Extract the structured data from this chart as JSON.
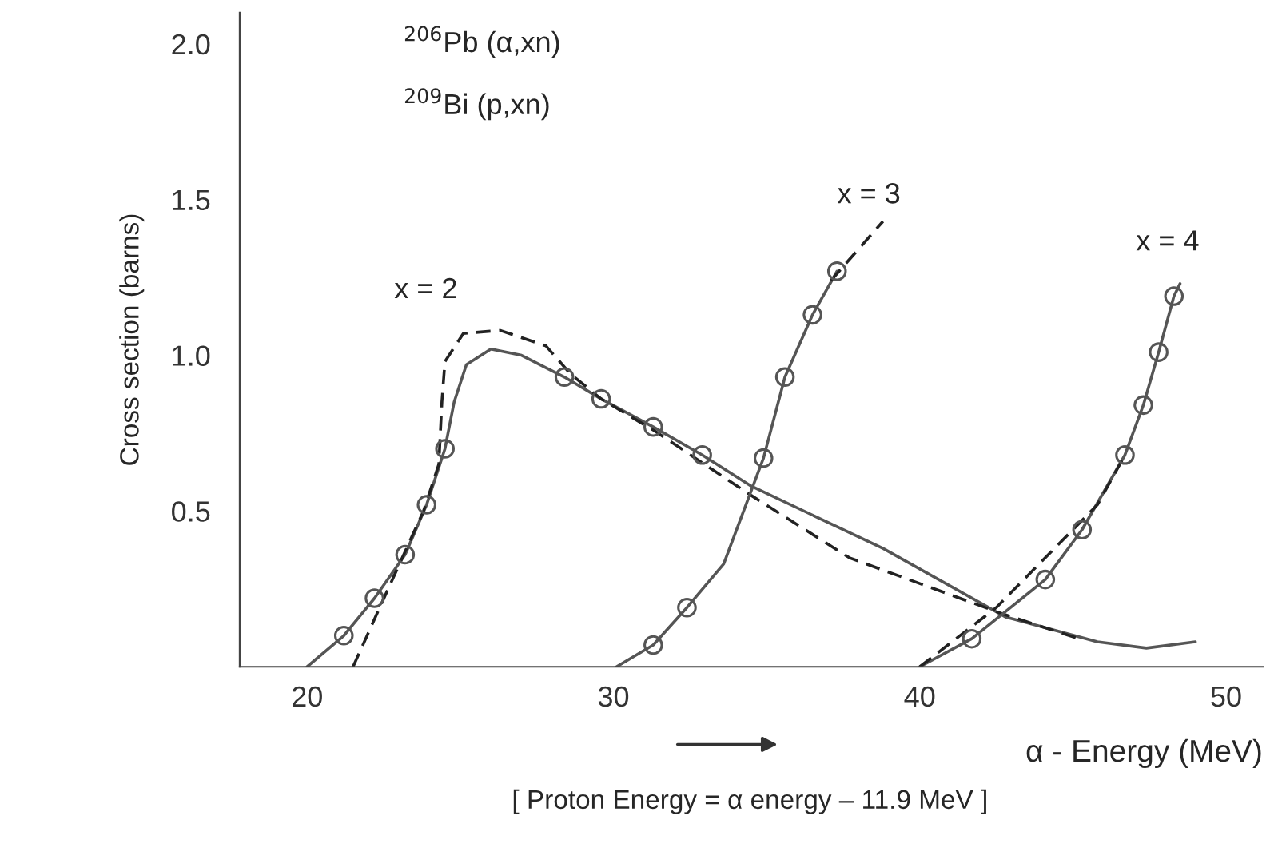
{
  "chart_data": {
    "type": "line",
    "xlabel": "α - Energy (MeV)",
    "ylabel": "Cross section (barns)",
    "xlim": [
      17.8,
      51.2
    ],
    "ylim": [
      0,
      2.1
    ],
    "xticks": [
      20,
      30,
      40,
      50
    ],
    "yticks": [
      0.5,
      {
        "value": 1,
        "label": "1.0"
      },
      1.5,
      {
        "value": 2,
        "label": "2.0"
      }
    ],
    "grid": false,
    "legend": false,
    "series": [
      {
        "type": "line",
        "line_style": "solid",
        "color": "#555555",
        "x": [
          20,
          21.2,
          22.2,
          23.2,
          23.9,
          24.5,
          24.8,
          25.2,
          26.0,
          27.0,
          28.4,
          29.6,
          31.3,
          32.9,
          34.5,
          38.8,
          42.8,
          45.8,
          47.4,
          49.0
        ],
        "values": [
          0,
          0.1,
          0.22,
          0.36,
          0.52,
          0.7,
          0.85,
          0.97,
          1.02,
          1.0,
          0.93,
          0.86,
          0.77,
          0.68,
          0.58,
          0.38,
          0.16,
          0.08,
          0.06,
          0.08
        ]
      },
      {
        "type": "line",
        "line_style": "dashed",
        "color": "#222222",
        "x": [
          21.5,
          22.6,
          23.8,
          24.3,
          24.4,
          24.5,
          25.1,
          26.3,
          27.8,
          28.6,
          29.6,
          31.3,
          34.5,
          37.7,
          42.7,
          45.2
        ],
        "values": [
          0,
          0.24,
          0.5,
          0.65,
          0.85,
          0.98,
          1.07,
          1.08,
          1.03,
          0.94,
          0.86,
          0.76,
          0.55,
          0.35,
          0.17,
          0.09
        ]
      },
      {
        "type": "scatter",
        "marker": "circle",
        "color": "#555555",
        "x": [
          21.2,
          22.2,
          23.2,
          23.9,
          24.5,
          28.4,
          29.6,
          31.3,
          32.9
        ],
        "values": [
          0.1,
          0.22,
          0.36,
          0.52,
          0.7,
          0.93,
          0.86,
          0.77,
          0.68
        ]
      },
      {
        "type": "line",
        "line_style": "solid",
        "color": "#555555",
        "x": [
          30.1,
          31.3,
          32.4,
          33.6,
          34.9,
          35.6,
          36.5,
          37.3
        ],
        "values": [
          0,
          0.07,
          0.19,
          0.33,
          0.67,
          0.93,
          1.13,
          1.27
        ]
      },
      {
        "type": "line",
        "line_style": "dashed",
        "color": "#222222",
        "x": [
          37.1,
          38.8
        ],
        "values": [
          1.24,
          1.43
        ]
      },
      {
        "type": "scatter",
        "marker": "circle",
        "color": "#555555",
        "x": [
          31.3,
          32.4,
          34.9,
          35.6,
          36.5,
          37.3
        ],
        "values": [
          0.07,
          0.19,
          0.67,
          0.93,
          1.13,
          1.27
        ]
      },
      {
        "type": "line",
        "line_style": "solid",
        "color": "#555555",
        "x": [
          40.0,
          41.7,
          44.1,
          45.3,
          46.7,
          47.3,
          47.8,
          48.3,
          48.5
        ],
        "values": [
          0,
          0.09,
          0.28,
          0.44,
          0.68,
          0.84,
          1.01,
          1.19,
          1.23
        ]
      },
      {
        "type": "line",
        "line_style": "dashed",
        "color": "#222222",
        "x": [
          40.0,
          42.5,
          45.8,
          46.7
        ],
        "values": [
          0,
          0.19,
          0.52,
          0.68
        ]
      },
      {
        "type": "scatter",
        "marker": "circle",
        "color": "#555555",
        "x": [
          41.7,
          44.1,
          45.3,
          46.7,
          47.3,
          47.8,
          48.3
        ],
        "values": [
          0.09,
          0.28,
          0.44,
          0.68,
          0.84,
          1.01,
          1.19
        ]
      }
    ],
    "annotations": [
      "x = 2",
      "x = 3",
      "x = 4",
      "$^{206}$Pb (α,xn)",
      "$^{209}$Bi (p,xn)",
      "[ Proton Energy = α energy – 11.9 MeV ]"
    ]
  }
}
